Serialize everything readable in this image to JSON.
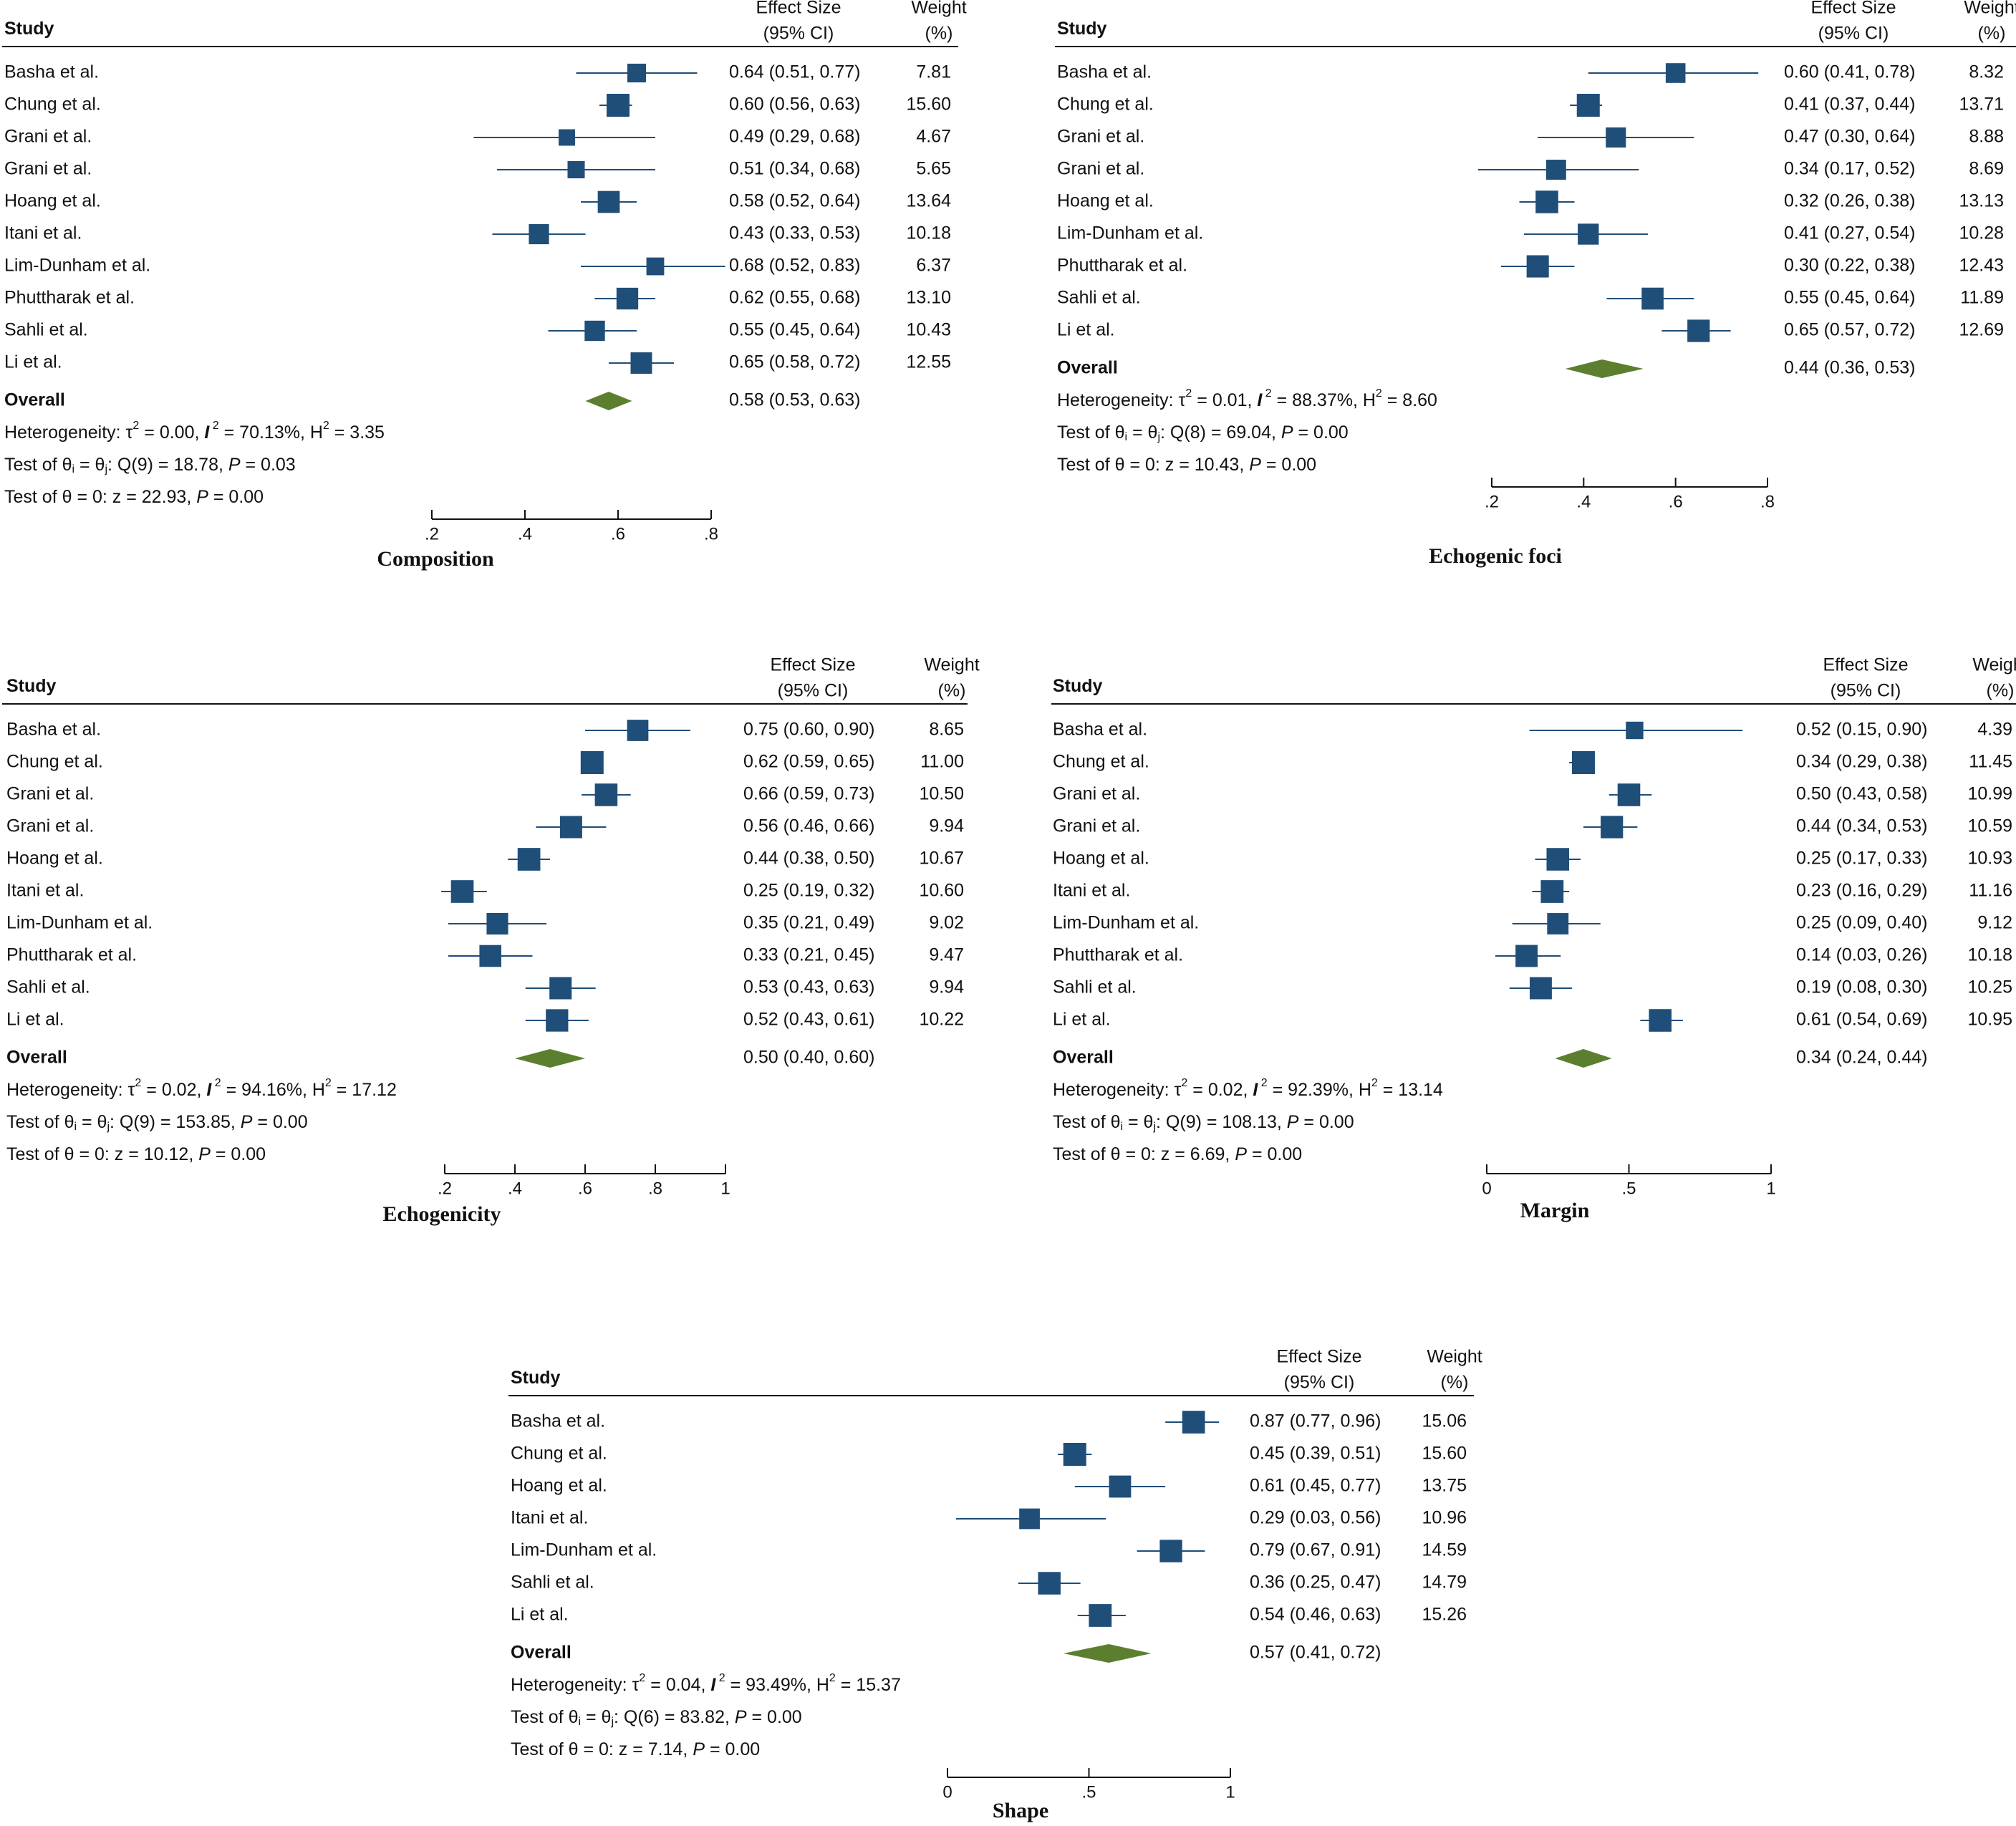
{
  "colors": {
    "marker": "#1f4e79",
    "diamond": "#5b7f2e",
    "text": "#111111",
    "line": "#111111"
  },
  "headers": {
    "study": "Study",
    "effect_size": "Effect Size",
    "ci": "(95% CI)",
    "weight": "Weight",
    "weight_unit": "(%)"
  },
  "chart_data": [
    {
      "type": "forest",
      "title": "Composition",
      "xlim": [
        0.2,
        0.8
      ],
      "ticks": [
        0.2,
        0.4,
        0.6,
        0.8
      ],
      "tick_labels": [
        ".2",
        ".4",
        ".6",
        ".8"
      ],
      "studies": [
        {
          "name": "Basha et al.",
          "es": 0.64,
          "lo": 0.51,
          "hi": 0.77,
          "es_text": "0.64 (0.51, 0.77)",
          "weight": "7.81"
        },
        {
          "name": "Chung et al.",
          "es": 0.6,
          "lo": 0.56,
          "hi": 0.63,
          "es_text": "0.60 (0.56, 0.63)",
          "weight": "15.60"
        },
        {
          "name": "Grani et al.",
          "es": 0.49,
          "lo": 0.29,
          "hi": 0.68,
          "es_text": "0.49 (0.29, 0.68)",
          "weight": "4.67"
        },
        {
          "name": "Grani et al.",
          "es": 0.51,
          "lo": 0.34,
          "hi": 0.68,
          "es_text": "0.51 (0.34, 0.68)",
          "weight": "5.65"
        },
        {
          "name": "Hoang et al.",
          "es": 0.58,
          "lo": 0.52,
          "hi": 0.64,
          "es_text": "0.58 (0.52, 0.64)",
          "weight": "13.64"
        },
        {
          "name": "Itani et al.",
          "es": 0.43,
          "lo": 0.33,
          "hi": 0.53,
          "es_text": "0.43 (0.33, 0.53)",
          "weight": "10.18"
        },
        {
          "name": "Lim-Dunham et al.",
          "es": 0.68,
          "lo": 0.52,
          "hi": 0.83,
          "es_text": "0.68 (0.52, 0.83)",
          "weight": "6.37"
        },
        {
          "name": "Phuttharak et al.",
          "es": 0.62,
          "lo": 0.55,
          "hi": 0.68,
          "es_text": "0.62 (0.55, 0.68)",
          "weight": "13.10"
        },
        {
          "name": "Sahli et al.",
          "es": 0.55,
          "lo": 0.45,
          "hi": 0.64,
          "es_text": "0.55 (0.45, 0.64)",
          "weight": "10.43"
        },
        {
          "name": "Li et al.",
          "es": 0.65,
          "lo": 0.58,
          "hi": 0.72,
          "es_text": "0.65 (0.58, 0.72)",
          "weight": "12.55"
        }
      ],
      "overall": {
        "label": "Overall",
        "es": 0.58,
        "lo": 0.53,
        "hi": 0.63,
        "es_text": "0.58 (0.53, 0.63)"
      },
      "heterogeneity": {
        "tau2": "0.00",
        "i2": "70.13%",
        "h2": "3.35"
      },
      "q_test": {
        "df": "9",
        "q": "18.78",
        "p": "0.03"
      },
      "z_test": {
        "z": "22.93",
        "p": "0.00"
      }
    },
    {
      "type": "forest",
      "title": "Echogenic foci",
      "xlim": [
        0.2,
        0.8
      ],
      "ticks": [
        0.2,
        0.4,
        0.6,
        0.8
      ],
      "tick_labels": [
        ".2",
        ".4",
        ".6",
        ".8"
      ],
      "studies": [
        {
          "name": "Basha et al.",
          "es": 0.6,
          "lo": 0.41,
          "hi": 0.78,
          "es_text": "0.60 (0.41, 0.78)",
          "weight": "8.32"
        },
        {
          "name": "Chung et al.",
          "es": 0.41,
          "lo": 0.37,
          "hi": 0.44,
          "es_text": "0.41 (0.37, 0.44)",
          "weight": "13.71"
        },
        {
          "name": "Grani et al.",
          "es": 0.47,
          "lo": 0.3,
          "hi": 0.64,
          "es_text": "0.47 (0.30, 0.64)",
          "weight": "8.88"
        },
        {
          "name": "Grani et al.",
          "es": 0.34,
          "lo": 0.17,
          "hi": 0.52,
          "es_text": "0.34 (0.17, 0.52)",
          "weight": "8.69"
        },
        {
          "name": "Hoang et al.",
          "es": 0.32,
          "lo": 0.26,
          "hi": 0.38,
          "es_text": "0.32 (0.26, 0.38)",
          "weight": "13.13"
        },
        {
          "name": "Lim-Dunham et al.",
          "es": 0.41,
          "lo": 0.27,
          "hi": 0.54,
          "es_text": "0.41 (0.27, 0.54)",
          "weight": "10.28"
        },
        {
          "name": "Phuttharak et al.",
          "es": 0.3,
          "lo": 0.22,
          "hi": 0.38,
          "es_text": "0.30 (0.22, 0.38)",
          "weight": "12.43"
        },
        {
          "name": "Sahli et al.",
          "es": 0.55,
          "lo": 0.45,
          "hi": 0.64,
          "es_text": "0.55 (0.45, 0.64)",
          "weight": "11.89"
        },
        {
          "name": "Li et al.",
          "es": 0.65,
          "lo": 0.57,
          "hi": 0.72,
          "es_text": "0.65 (0.57, 0.72)",
          "weight": "12.69"
        }
      ],
      "overall": {
        "label": "Overall",
        "es": 0.44,
        "lo": 0.36,
        "hi": 0.53,
        "es_text": "0.44 (0.36, 0.53)"
      },
      "heterogeneity": {
        "tau2": "0.01",
        "i2": "88.37%",
        "h2": "8.60"
      },
      "q_test": {
        "df": "8",
        "q": "69.04",
        "p": "0.00"
      },
      "z_test": {
        "z": "10.43",
        "p": "0.00"
      }
    },
    {
      "type": "forest",
      "title": "Echogenicity",
      "xlim": [
        0.2,
        1.0
      ],
      "ticks": [
        0.2,
        0.4,
        0.6,
        0.8,
        1.0
      ],
      "tick_labels": [
        ".2",
        ".4",
        ".6",
        ".8",
        "1"
      ],
      "studies": [
        {
          "name": "Basha et al.",
          "es": 0.75,
          "lo": 0.6,
          "hi": 0.9,
          "es_text": "0.75 (0.60, 0.90)",
          "weight": "8.65"
        },
        {
          "name": "Chung et al.",
          "es": 0.62,
          "lo": 0.59,
          "hi": 0.65,
          "es_text": "0.62 (0.59, 0.65)",
          "weight": "11.00"
        },
        {
          "name": "Grani et al.",
          "es": 0.66,
          "lo": 0.59,
          "hi": 0.73,
          "es_text": "0.66 (0.59, 0.73)",
          "weight": "10.50"
        },
        {
          "name": "Grani et al.",
          "es": 0.56,
          "lo": 0.46,
          "hi": 0.66,
          "es_text": "0.56 (0.46, 0.66)",
          "weight": "9.94"
        },
        {
          "name": "Hoang et al.",
          "es": 0.44,
          "lo": 0.38,
          "hi": 0.5,
          "es_text": "0.44 (0.38, 0.50)",
          "weight": "10.67"
        },
        {
          "name": "Itani et al.",
          "es": 0.25,
          "lo": 0.19,
          "hi": 0.32,
          "es_text": "0.25 (0.19, 0.32)",
          "weight": "10.60"
        },
        {
          "name": "Lim-Dunham et al.",
          "es": 0.35,
          "lo": 0.21,
          "hi": 0.49,
          "es_text": "0.35 (0.21, 0.49)",
          "weight": "9.02"
        },
        {
          "name": "Phuttharak et al.",
          "es": 0.33,
          "lo": 0.21,
          "hi": 0.45,
          "es_text": "0.33 (0.21, 0.45)",
          "weight": "9.47"
        },
        {
          "name": "Sahli et al.",
          "es": 0.53,
          "lo": 0.43,
          "hi": 0.63,
          "es_text": "0.53 (0.43, 0.63)",
          "weight": "9.94"
        },
        {
          "name": "Li et al.",
          "es": 0.52,
          "lo": 0.43,
          "hi": 0.61,
          "es_text": "0.52 (0.43, 0.61)",
          "weight": "10.22"
        }
      ],
      "overall": {
        "label": "Overall",
        "es": 0.5,
        "lo": 0.4,
        "hi": 0.6,
        "es_text": "0.50 (0.40, 0.60)"
      },
      "heterogeneity": {
        "tau2": "0.02",
        "i2": "94.16%",
        "h2": "17.12"
      },
      "q_test": {
        "df": "9",
        "q": "153.85",
        "p": "0.00"
      },
      "z_test": {
        "z": "10.12",
        "p": "0.00"
      }
    },
    {
      "type": "forest",
      "title": "Margin",
      "xlim": [
        0.0,
        1.0
      ],
      "ticks": [
        0.0,
        0.5,
        1.0
      ],
      "tick_labels": [
        "0",
        ".5",
        "1"
      ],
      "studies": [
        {
          "name": "Basha et al.",
          "es": 0.52,
          "lo": 0.15,
          "hi": 0.9,
          "es_text": "0.52 (0.15, 0.90)",
          "weight": "4.39"
        },
        {
          "name": "Chung et al.",
          "es": 0.34,
          "lo": 0.29,
          "hi": 0.38,
          "es_text": "0.34 (0.29, 0.38)",
          "weight": "11.45"
        },
        {
          "name": "Grani et al.",
          "es": 0.5,
          "lo": 0.43,
          "hi": 0.58,
          "es_text": "0.50 (0.43, 0.58)",
          "weight": "10.99"
        },
        {
          "name": "Grani et al.",
          "es": 0.44,
          "lo": 0.34,
          "hi": 0.53,
          "es_text": "0.44 (0.34, 0.53)",
          "weight": "10.59"
        },
        {
          "name": "Hoang et al.",
          "es": 0.25,
          "lo": 0.17,
          "hi": 0.33,
          "es_text": "0.25 (0.17, 0.33)",
          "weight": "10.93"
        },
        {
          "name": "Itani et al.",
          "es": 0.23,
          "lo": 0.16,
          "hi": 0.29,
          "es_text": "0.23 (0.16, 0.29)",
          "weight": "11.16"
        },
        {
          "name": "Lim-Dunham et al.",
          "es": 0.25,
          "lo": 0.09,
          "hi": 0.4,
          "es_text": "0.25 (0.09, 0.40)",
          "weight": "9.12"
        },
        {
          "name": "Phuttharak et al.",
          "es": 0.14,
          "lo": 0.03,
          "hi": 0.26,
          "es_text": "0.14 (0.03, 0.26)",
          "weight": "10.18"
        },
        {
          "name": "Sahli et al.",
          "es": 0.19,
          "lo": 0.08,
          "hi": 0.3,
          "es_text": "0.19 (0.08, 0.30)",
          "weight": "10.25"
        },
        {
          "name": "Li et al.",
          "es": 0.61,
          "lo": 0.54,
          "hi": 0.69,
          "es_text": "0.61 (0.54, 0.69)",
          "weight": "10.95"
        }
      ],
      "overall": {
        "label": "Overall",
        "es": 0.34,
        "lo": 0.24,
        "hi": 0.44,
        "es_text": "0.34 (0.24, 0.44)"
      },
      "heterogeneity": {
        "tau2": "0.02",
        "i2": "92.39%",
        "h2": "13.14"
      },
      "q_test": {
        "df": "9",
        "q": "108.13",
        "p": "0.00"
      },
      "z_test": {
        "z": "6.69",
        "p": "0.00"
      }
    },
    {
      "type": "forest",
      "title": "Shape",
      "xlim": [
        0.0,
        1.0
      ],
      "ticks": [
        0.0,
        0.5,
        1.0
      ],
      "tick_labels": [
        "0",
        ".5",
        "1"
      ],
      "studies": [
        {
          "name": "Basha et al.",
          "es": 0.87,
          "lo": 0.77,
          "hi": 0.96,
          "es_text": "0.87 (0.77, 0.96)",
          "weight": "15.06"
        },
        {
          "name": "Chung et al.",
          "es": 0.45,
          "lo": 0.39,
          "hi": 0.51,
          "es_text": "0.45 (0.39, 0.51)",
          "weight": "15.60"
        },
        {
          "name": "Hoang et al.",
          "es": 0.61,
          "lo": 0.45,
          "hi": 0.77,
          "es_text": "0.61 (0.45, 0.77)",
          "weight": "13.75"
        },
        {
          "name": "Itani et al.",
          "es": 0.29,
          "lo": 0.03,
          "hi": 0.56,
          "es_text": "0.29 (0.03, 0.56)",
          "weight": "10.96"
        },
        {
          "name": "Lim-Dunham et al.",
          "es": 0.79,
          "lo": 0.67,
          "hi": 0.91,
          "es_text": "0.79 (0.67, 0.91)",
          "weight": "14.59"
        },
        {
          "name": "Sahli et al.",
          "es": 0.36,
          "lo": 0.25,
          "hi": 0.47,
          "es_text": "0.36 (0.25, 0.47)",
          "weight": "14.79"
        },
        {
          "name": "Li et al.",
          "es": 0.54,
          "lo": 0.46,
          "hi": 0.63,
          "es_text": "0.54 (0.46, 0.63)",
          "weight": "15.26"
        }
      ],
      "overall": {
        "label": "Overall",
        "es": 0.57,
        "lo": 0.41,
        "hi": 0.72,
        "es_text": "0.57 (0.41, 0.72)"
      },
      "heterogeneity": {
        "tau2": "0.04",
        "i2": "93.49%",
        "h2": "15.37"
      },
      "q_test": {
        "df": "6",
        "q": "83.82",
        "p": "0.00"
      },
      "z_test": {
        "z": "7.14",
        "p": "0.00"
      }
    }
  ]
}
